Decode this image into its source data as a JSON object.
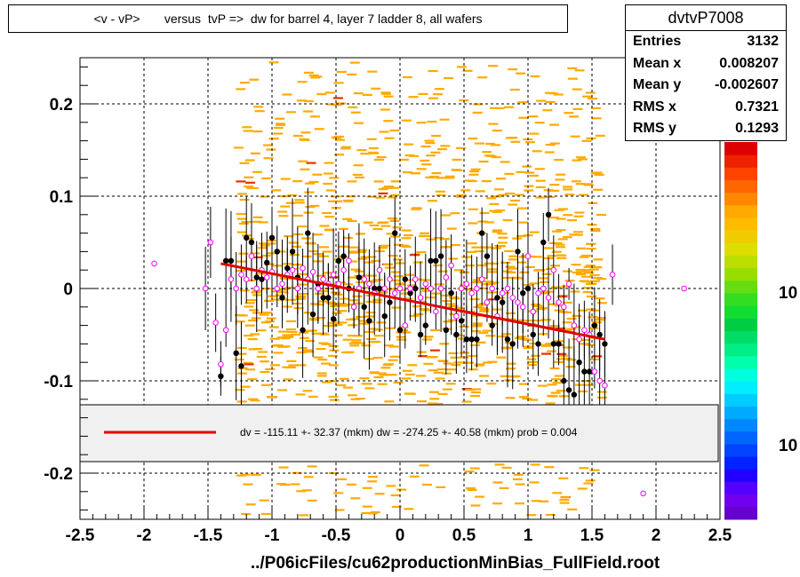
{
  "title": "<v - vP>       versus  tvP =>  dw for barrel 4, layer 7 ladder 8, all wafers",
  "stats": {
    "name": "dvtvP7008",
    "rows": [
      {
        "label": "Entries",
        "value": "3132"
      },
      {
        "label": "Mean x",
        "value": "0.008207"
      },
      {
        "label": "Mean y",
        "value": "-0.002607"
      },
      {
        "label": "RMS x",
        "value": "0.7321"
      },
      {
        "label": "RMS y",
        "value": "0.1293"
      }
    ]
  },
  "fit_legend": "dv = -115.11 +- 32.37 (mkm) dw = -274.25 +- 40.58 (mkm) prob = 0.004",
  "colorbar_labels": [
    "10",
    "10"
  ],
  "colors": {
    "heat_orange": "#ffaa00",
    "heat_red": "#e83000",
    "fit_line": "#e00000",
    "open_marker": "#ff00ff"
  },
  "chart_data": {
    "type": "scatter",
    "title": "<v - vP>       versus  tvP =>  dw for barrel 4, layer 7 ladder 8, all wafers",
    "xlabel": "../P06icFiles/cu62productionMinBias_FullField.root",
    "ylabel": "",
    "xlim": [
      -2.5,
      2.5
    ],
    "ylim": [
      -0.25,
      0.25
    ],
    "xticks": [
      -2.5,
      -2,
      -1.5,
      -1,
      -0.5,
      0,
      0.5,
      1,
      1.5,
      2,
      2.5
    ],
    "xtick_labels": [
      "-2.5",
      "-2",
      "-1.5",
      "-1",
      "-0.5",
      "0",
      "0.5",
      "1",
      "1.5",
      "2",
      "2.5"
    ],
    "yticks": [
      -0.2,
      -0.1,
      0,
      0.1,
      0.2
    ],
    "ytick_labels": [
      "-0.2",
      "-0.1",
      "0",
      "0.1",
      "0.2"
    ],
    "grid": true,
    "fit_line": {
      "x": [
        -1.4,
        1.6
      ],
      "y": [
        0.027,
        -0.055
      ]
    },
    "profile_filled": {
      "x": [
        -1.4,
        -1.36,
        -1.32,
        -1.28,
        -1.24,
        -1.2,
        -1.16,
        -1.12,
        -1.08,
        -1.04,
        -1.0,
        -0.96,
        -0.92,
        -0.88,
        -0.84,
        -0.8,
        -0.76,
        -0.72,
        -0.68,
        -0.64,
        -0.6,
        -0.56,
        -0.52,
        -0.48,
        -0.44,
        -0.4,
        -0.36,
        -0.32,
        -0.28,
        -0.24,
        -0.2,
        -0.16,
        -0.12,
        -0.08,
        -0.04,
        0.0,
        0.04,
        0.08,
        0.12,
        0.16,
        0.2,
        0.24,
        0.28,
        0.32,
        0.36,
        0.4,
        0.44,
        0.48,
        0.52,
        0.56,
        0.6,
        0.64,
        0.68,
        0.72,
        0.76,
        0.8,
        0.84,
        0.88,
        0.92,
        0.96,
        1.0,
        1.04,
        1.08,
        1.12,
        1.16,
        1.2,
        1.24,
        1.28,
        1.32,
        1.36,
        1.4,
        1.44,
        1.48,
        1.52,
        1.56,
        1.6
      ],
      "y": [
        -0.095,
        0.03,
        0.03,
        -0.07,
        -0.084,
        0.055,
        0.05,
        0.012,
        0.01,
        0.028,
        0.055,
        0.04,
        -0.01,
        0.022,
        0.04,
        0.012,
        -0.045,
        0.06,
        -0.028,
        0.005,
        -0.01,
        -0.01,
        -0.033,
        0.03,
        0.035,
        0.0,
        -0.02,
        0.012,
        -0.02,
        -0.035,
        0.0,
        0.0,
        -0.03,
        -0.015,
        0.06,
        -0.045,
        0.01,
        -0.005,
        0.0,
        -0.05,
        -0.04,
        0.03,
        0.03,
        0.035,
        -0.045,
        -0.005,
        -0.05,
        -0.035,
        -0.055,
        -0.055,
        -0.055,
        0.06,
        0.035,
        -0.04,
        -0.01,
        -0.015,
        -0.055,
        -0.06,
        0.04,
        -0.005,
        0.0,
        -0.05,
        -0.06,
        0.05,
        0.08,
        -0.06,
        -0.06,
        -0.1,
        -0.11,
        -0.115,
        -0.08,
        -0.09,
        -0.09,
        -0.04,
        -0.05,
        -0.06
      ]
    },
    "profile_open": {
      "x": [
        -1.92,
        -1.52,
        -1.48,
        -1.44,
        -1.4,
        -1.36,
        -1.32,
        -1.28,
        -1.24,
        -1.2,
        -1.16,
        -1.12,
        -1.08,
        -1.04,
        -1.0,
        -0.96,
        -0.92,
        -0.88,
        -0.84,
        -0.8,
        -0.76,
        -0.72,
        -0.68,
        -0.64,
        -0.6,
        -0.56,
        -0.52,
        -0.48,
        -0.44,
        -0.4,
        -0.36,
        -0.32,
        -0.28,
        -0.24,
        -0.2,
        -0.16,
        -0.12,
        -0.08,
        -0.04,
        0.0,
        0.04,
        0.08,
        0.12,
        0.16,
        0.2,
        0.24,
        0.28,
        0.32,
        0.36,
        0.4,
        0.44,
        0.48,
        0.52,
        0.56,
        0.6,
        0.64,
        0.68,
        0.72,
        0.76,
        0.8,
        0.84,
        0.88,
        0.92,
        0.96,
        1.0,
        1.04,
        1.08,
        1.12,
        1.16,
        1.2,
        1.24,
        1.28,
        1.32,
        1.36,
        1.4,
        1.44,
        1.48,
        1.52,
        1.56,
        1.6,
        1.66,
        1.9,
        2.22
      ],
      "y": [
        0.027,
        0.0,
        0.05,
        -0.037,
        -0.082,
        -0.045,
        0.01,
        0.0,
        0.015,
        0.01,
        0.035,
        0.0,
        0.02,
        0.012,
        0.018,
        0.0,
        0.005,
        0.015,
        0.02,
        0.0,
        0.022,
        0.01,
        0.018,
        0.0,
        0.01,
        0.005,
        0.015,
        0.005,
        0.02,
        0.03,
        -0.02,
        0.0,
        0.01,
        0.005,
        -0.005,
        0.02,
        0.0,
        0.01,
        -0.005,
        0.0,
        -0.04,
        0.0,
        0.01,
        -0.01,
        0.005,
        0.0,
        -0.025,
        0.0,
        0.012,
        0.025,
        -0.03,
        0.0,
        0.005,
        -0.005,
        0.0,
        0.01,
        -0.015,
        0.0,
        -0.03,
        -0.005,
        0.0,
        -0.01,
        -0.015,
        -0.02,
        0.035,
        -0.025,
        -0.005,
        0.0,
        -0.01,
        0.02,
        -0.015,
        -0.02,
        0.005,
        -0.04,
        -0.055,
        -0.045,
        -0.05,
        -0.09,
        -0.1,
        -0.105,
        0.015,
        -0.222,
        0.0
      ]
    }
  }
}
